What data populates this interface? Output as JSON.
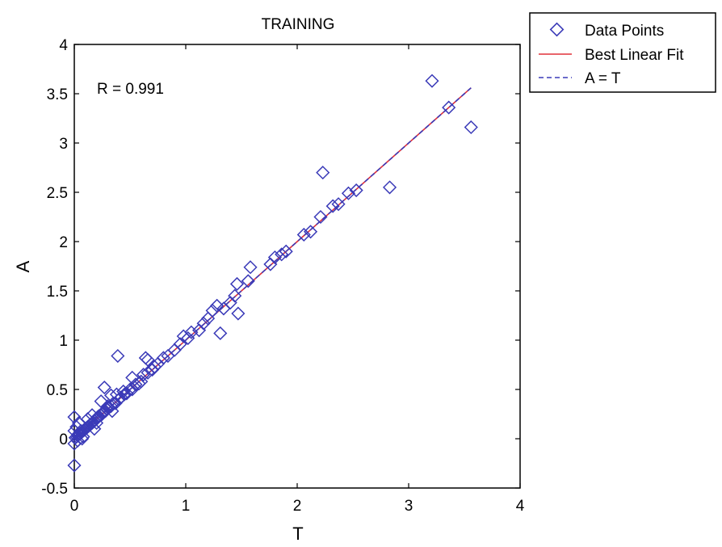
{
  "chart_data": {
    "type": "scatter",
    "title": "TRAINING",
    "xlabel": "T",
    "ylabel": "A",
    "xlim": [
      0,
      4
    ],
    "ylim": [
      -0.5,
      4
    ],
    "xticks": [
      "0",
      "1",
      "2",
      "3",
      "4"
    ],
    "yticks": [
      "-0.5",
      "0",
      "0.5",
      "1",
      "1.5",
      "2",
      "2.5",
      "3",
      "3.5",
      "4"
    ],
    "grid": false,
    "legend_position": "outside-top-right",
    "annotation": "R = 0.991",
    "colors": {
      "points": "#3a3ab8",
      "fit": "#e0303a",
      "identity": "#3a3ab8",
      "frame": "#000000"
    },
    "legend": [
      {
        "label": "Data Points",
        "marker": "diamond-open",
        "color": "#3a3ab8"
      },
      {
        "label": "Best Linear Fit",
        "style": "solid-line",
        "color": "#e0303a"
      },
      {
        "label": "A = T",
        "style": "dashed-line",
        "color": "#3a3ab8"
      }
    ],
    "series": [
      {
        "name": "Data Points",
        "marker": "diamond-open",
        "x": [
          3.21,
          3.36,
          3.56,
          2.23,
          2.83,
          2.53,
          2.46,
          2.37,
          2.32,
          2.21,
          2.12,
          2.06,
          1.9,
          1.86,
          1.8,
          1.76,
          1.58,
          1.56,
          1.46,
          1.44,
          1.4,
          1.34,
          1.28,
          1.24,
          1.2,
          1.16,
          1.12,
          1.05,
          1.02,
          0.98,
          0.95,
          0.9,
          0.84,
          0.8,
          0.75,
          0.7,
          0.66,
          0.62,
          0.6,
          0.58,
          0.55,
          0.52,
          0.5,
          0.47,
          0.45,
          0.42,
          0.4,
          0.39,
          0.37,
          0.35,
          0.33,
          0.31,
          0.29,
          0.28,
          0.26,
          0.25,
          0.24,
          0.22,
          0.21,
          0.2,
          0.18,
          0.17,
          0.16,
          0.15,
          0.14,
          0.13,
          0.12,
          0.11,
          0.1,
          0.09,
          0.08,
          0.07,
          0.06,
          0.05,
          0.04,
          0.03,
          0.02,
          0.01,
          0.0,
          0.0,
          0.0,
          0.02,
          0.04,
          0.06,
          0.08,
          0.12,
          0.16,
          0.2,
          0.24,
          0.3,
          0.34,
          0.0,
          0.03,
          0.07,
          0.18,
          0.27,
          0.38,
          0.44,
          0.52,
          0.64,
          0.66,
          0.72,
          1.31,
          1.47,
          0.33
        ],
        "y": [
          3.63,
          3.36,
          3.16,
          2.7,
          2.55,
          2.52,
          2.49,
          2.38,
          2.36,
          2.25,
          2.1,
          2.07,
          1.9,
          1.87,
          1.84,
          1.77,
          1.74,
          1.6,
          1.57,
          1.45,
          1.38,
          1.32,
          1.35,
          1.3,
          1.22,
          1.17,
          1.1,
          1.08,
          1.02,
          1.04,
          0.96,
          0.9,
          0.84,
          0.82,
          0.76,
          0.7,
          0.67,
          0.65,
          0.58,
          0.56,
          0.55,
          0.5,
          0.5,
          0.46,
          0.45,
          0.42,
          0.4,
          0.84,
          0.36,
          0.36,
          0.33,
          0.32,
          0.3,
          0.28,
          0.27,
          0.25,
          0.24,
          0.23,
          0.22,
          0.2,
          0.18,
          0.17,
          0.16,
          0.15,
          0.14,
          0.13,
          0.12,
          0.11,
          0.1,
          0.09,
          0.08,
          0.07,
          0.06,
          0.05,
          0.05,
          0.03,
          0.02,
          0.01,
          0.22,
          -0.05,
          -0.27,
          0.12,
          0.16,
          0.08,
          0.02,
          0.2,
          0.24,
          0.16,
          0.38,
          0.33,
          0.28,
          0.08,
          -0.02,
          0.0,
          0.1,
          0.52,
          0.45,
          0.48,
          0.62,
          0.82,
          0.8,
          0.73,
          1.07,
          1.27,
          0.44
        ]
      },
      {
        "name": "Best Linear Fit",
        "style": "solid",
        "x": [
          0,
          3.56
        ],
        "y": [
          0,
          3.56
        ]
      },
      {
        "name": "A = T",
        "style": "dashed",
        "x": [
          0,
          3.56
        ],
        "y": [
          0,
          3.56
        ]
      }
    ]
  }
}
